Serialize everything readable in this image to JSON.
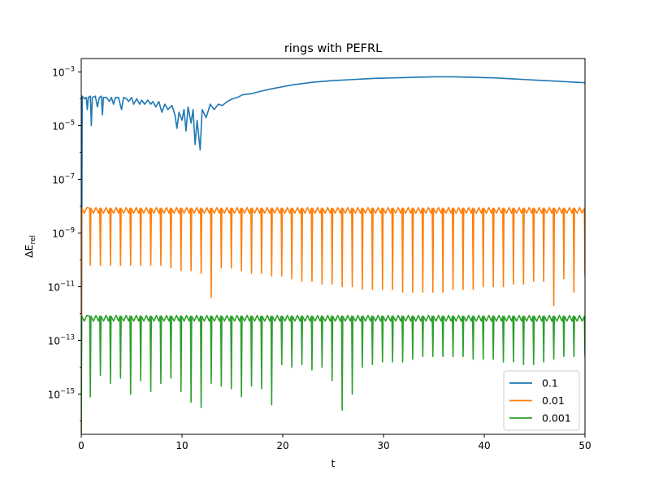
{
  "chart_data": {
    "type": "line",
    "title": "rings with PEFRL",
    "xlabel": "t",
    "ylabel": "ΔE_rel",
    "xlim": [
      0,
      50
    ],
    "ylim_log10": [
      -16.5,
      -2.5
    ],
    "yscale": "log",
    "grid": false,
    "legend_position": "bottom-right",
    "x_ticks": [
      0,
      10,
      20,
      30,
      40,
      50
    ],
    "y_ticks": [
      {
        "exp": -3,
        "base": "10",
        "sup": "−3"
      },
      {
        "exp": -5,
        "base": "10",
        "sup": "−5"
      },
      {
        "exp": -7,
        "base": "10",
        "sup": "−7"
      },
      {
        "exp": -9,
        "base": "10",
        "sup": "−9"
      },
      {
        "exp": -11,
        "base": "10",
        "sup": "−11"
      },
      {
        "exp": -13,
        "base": "10",
        "sup": "−13"
      },
      {
        "exp": -15,
        "base": "10",
        "sup": "−15"
      }
    ],
    "series": [
      {
        "name": "0.1",
        "color": "#1f77b4",
        "points": [
          [
            0.0,
            -16.4
          ],
          [
            0.1,
            -3.9
          ],
          [
            0.3,
            -4.0
          ],
          [
            0.5,
            -3.95
          ],
          [
            0.6,
            -4.4
          ],
          [
            0.7,
            -3.95
          ],
          [
            0.9,
            -3.9
          ],
          [
            1.0,
            -5.0
          ],
          [
            1.1,
            -3.95
          ],
          [
            1.4,
            -3.9
          ],
          [
            1.6,
            -4.3
          ],
          [
            1.8,
            -3.95
          ],
          [
            2.0,
            -3.9
          ],
          [
            2.1,
            -4.6
          ],
          [
            2.2,
            -3.95
          ],
          [
            2.5,
            -3.95
          ],
          [
            2.8,
            -4.1
          ],
          [
            3.0,
            -3.95
          ],
          [
            3.2,
            -4.2
          ],
          [
            3.4,
            -3.95
          ],
          [
            3.7,
            -3.95
          ],
          [
            4.0,
            -4.4
          ],
          [
            4.2,
            -3.95
          ],
          [
            4.5,
            -4.0
          ],
          [
            4.7,
            -4.1
          ],
          [
            5.0,
            -3.95
          ],
          [
            5.2,
            -4.2
          ],
          [
            5.5,
            -4.0
          ],
          [
            5.8,
            -4.2
          ],
          [
            6.0,
            -4.05
          ],
          [
            6.3,
            -4.2
          ],
          [
            6.6,
            -4.05
          ],
          [
            6.9,
            -4.2
          ],
          [
            7.1,
            -4.1
          ],
          [
            7.4,
            -4.3
          ],
          [
            7.7,
            -4.1
          ],
          [
            8.0,
            -4.5
          ],
          [
            8.3,
            -4.2
          ],
          [
            8.6,
            -4.4
          ],
          [
            9.0,
            -4.25
          ],
          [
            9.3,
            -4.6
          ],
          [
            9.5,
            -5.1
          ],
          [
            9.7,
            -4.5
          ],
          [
            10.0,
            -4.8
          ],
          [
            10.2,
            -4.4
          ],
          [
            10.4,
            -5.2
          ],
          [
            10.6,
            -4.3
          ],
          [
            10.9,
            -4.9
          ],
          [
            11.1,
            -4.4
          ],
          [
            11.3,
            -5.7
          ],
          [
            11.5,
            -4.8
          ],
          [
            11.8,
            -5.9
          ],
          [
            12.0,
            -4.4
          ],
          [
            12.4,
            -4.7
          ],
          [
            12.8,
            -4.2
          ],
          [
            13.2,
            -4.4
          ],
          [
            13.6,
            -4.2
          ],
          [
            14.0,
            -4.25
          ],
          [
            14.5,
            -4.1
          ],
          [
            15.0,
            -4.0
          ],
          [
            15.5,
            -3.95
          ],
          [
            16.0,
            -3.85
          ],
          [
            17.0,
            -3.8
          ],
          [
            18.0,
            -3.7
          ],
          [
            19.0,
            -3.62
          ],
          [
            20.0,
            -3.55
          ],
          [
            21.0,
            -3.48
          ],
          [
            22.0,
            -3.43
          ],
          [
            23.0,
            -3.38
          ],
          [
            24.0,
            -3.35
          ],
          [
            25.0,
            -3.32
          ],
          [
            26.0,
            -3.3
          ],
          [
            27.0,
            -3.28
          ],
          [
            28.0,
            -3.26
          ],
          [
            29.0,
            -3.24
          ],
          [
            30.0,
            -3.23
          ],
          [
            31.0,
            -3.22
          ],
          [
            32.0,
            -3.21
          ],
          [
            33.0,
            -3.2
          ],
          [
            34.0,
            -3.19
          ],
          [
            35.0,
            -3.18
          ],
          [
            36.0,
            -3.18
          ],
          [
            37.0,
            -3.18
          ],
          [
            38.0,
            -3.19
          ],
          [
            39.0,
            -3.2
          ],
          [
            40.0,
            -3.21
          ],
          [
            41.0,
            -3.22
          ],
          [
            42.0,
            -3.24
          ],
          [
            43.0,
            -3.26
          ],
          [
            44.0,
            -3.28
          ],
          [
            45.0,
            -3.3
          ],
          [
            46.0,
            -3.32
          ],
          [
            47.0,
            -3.34
          ],
          [
            48.0,
            -3.36
          ],
          [
            49.0,
            -3.38
          ],
          [
            50.0,
            -3.4
          ]
        ]
      },
      {
        "name": "0.01",
        "color": "#ff7f0e",
        "baseline": -8.08,
        "dips": [
          [
            0.9,
            -10.2
          ],
          [
            1.9,
            -10.2
          ],
          [
            2.9,
            -10.2
          ],
          [
            3.9,
            -10.2
          ],
          [
            4.9,
            -10.2
          ],
          [
            5.9,
            -10.2
          ],
          [
            6.9,
            -10.2
          ],
          [
            7.9,
            -10.2
          ],
          [
            8.9,
            -10.3
          ],
          [
            9.9,
            -10.4
          ],
          [
            10.9,
            -10.4
          ],
          [
            11.9,
            -10.5
          ],
          [
            12.9,
            -11.4
          ],
          [
            13.9,
            -10.3
          ],
          [
            14.9,
            -10.3
          ],
          [
            15.9,
            -10.4
          ],
          [
            16.9,
            -10.5
          ],
          [
            17.9,
            -10.5
          ],
          [
            18.9,
            -10.6
          ],
          [
            19.9,
            -10.6
          ],
          [
            20.9,
            -10.7
          ],
          [
            21.9,
            -10.8
          ],
          [
            22.9,
            -10.8
          ],
          [
            23.9,
            -10.9
          ],
          [
            24.9,
            -10.9
          ],
          [
            25.9,
            -11.0
          ],
          [
            26.9,
            -11.0
          ],
          [
            27.9,
            -11.1
          ],
          [
            28.9,
            -11.1
          ],
          [
            29.9,
            -11.1
          ],
          [
            30.9,
            -11.1
          ],
          [
            31.9,
            -11.2
          ],
          [
            32.9,
            -11.2
          ],
          [
            33.9,
            -11.2
          ],
          [
            34.9,
            -11.2
          ],
          [
            35.9,
            -11.2
          ],
          [
            36.9,
            -11.1
          ],
          [
            37.9,
            -11.1
          ],
          [
            38.9,
            -11.1
          ],
          [
            39.9,
            -11.0
          ],
          [
            40.9,
            -11.0
          ],
          [
            41.9,
            -11.0
          ],
          [
            42.9,
            -10.9
          ],
          [
            43.9,
            -10.9
          ],
          [
            44.9,
            -10.8
          ],
          [
            45.9,
            -10.8
          ],
          [
            46.9,
            -11.7
          ],
          [
            47.9,
            -10.7
          ],
          [
            48.9,
            -11.2
          ],
          [
            50.0,
            -10.6
          ]
        ]
      },
      {
        "name": "0.001",
        "color": "#2ca02c",
        "baseline": -12.1,
        "dips": [
          [
            0.9,
            -15.1
          ],
          [
            1.9,
            -14.3
          ],
          [
            2.9,
            -14.6
          ],
          [
            3.9,
            -14.4
          ],
          [
            4.9,
            -15.0
          ],
          [
            5.9,
            -14.5
          ],
          [
            6.9,
            -14.9
          ],
          [
            7.9,
            -14.6
          ],
          [
            8.9,
            -14.4
          ],
          [
            9.9,
            -14.9
          ],
          [
            10.9,
            -15.3
          ],
          [
            11.9,
            -15.5
          ],
          [
            12.9,
            -14.6
          ],
          [
            13.9,
            -14.7
          ],
          [
            14.9,
            -14.8
          ],
          [
            15.9,
            -15.1
          ],
          [
            16.9,
            -14.7
          ],
          [
            17.9,
            -14.8
          ],
          [
            18.9,
            -15.4
          ],
          [
            19.9,
            -13.9
          ],
          [
            20.9,
            -14.0
          ],
          [
            21.9,
            -13.9
          ],
          [
            22.9,
            -14.1
          ],
          [
            23.9,
            -14.0
          ],
          [
            24.9,
            -14.5
          ],
          [
            25.9,
            -15.6
          ],
          [
            26.9,
            -15.0
          ],
          [
            27.9,
            -14.0
          ],
          [
            28.9,
            -13.9
          ],
          [
            29.9,
            -13.8
          ],
          [
            30.9,
            -13.8
          ],
          [
            31.9,
            -13.8
          ],
          [
            32.9,
            -13.7
          ],
          [
            33.9,
            -13.6
          ],
          [
            34.9,
            -13.6
          ],
          [
            35.9,
            -13.6
          ],
          [
            36.9,
            -13.6
          ],
          [
            37.9,
            -13.6
          ],
          [
            38.9,
            -13.7
          ],
          [
            39.9,
            -13.7
          ],
          [
            40.9,
            -13.7
          ],
          [
            41.9,
            -13.8
          ],
          [
            42.9,
            -13.8
          ],
          [
            43.9,
            -13.9
          ],
          [
            44.9,
            -13.9
          ],
          [
            45.9,
            -13.8
          ],
          [
            46.9,
            -13.7
          ],
          [
            47.9,
            -13.6
          ],
          [
            48.9,
            -13.6
          ],
          [
            50.0,
            -13.6
          ]
        ]
      }
    ]
  }
}
